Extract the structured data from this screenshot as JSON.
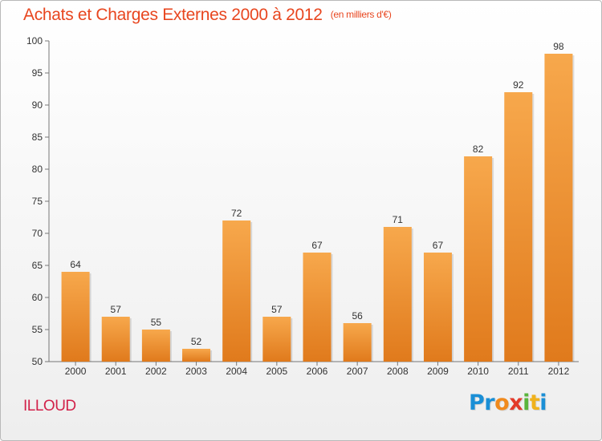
{
  "chart_data": {
    "type": "bar",
    "title": "Achats et Charges Externes 2000 à 2012",
    "subtitle": "(en milliers d'€)",
    "categories": [
      "2000",
      "2001",
      "2002",
      "2003",
      "2004",
      "2005",
      "2006",
      "2007",
      "2008",
      "2009",
      "2010",
      "2011",
      "2012"
    ],
    "values": [
      64,
      57,
      55,
      52,
      72,
      57,
      67,
      56,
      71,
      67,
      82,
      92,
      98
    ],
    "ylim": [
      50,
      100
    ],
    "yticks": [
      50,
      55,
      60,
      65,
      70,
      75,
      80,
      85,
      90,
      95,
      100
    ],
    "grid": false,
    "bar_color": "#f0912f",
    "xlabel": "",
    "ylabel": ""
  },
  "town": "ILLOUD",
  "logo": {
    "letters": [
      {
        "ch": "P",
        "color": "#1a8fd6"
      },
      {
        "ch": "r",
        "color": "#1a8fd6"
      },
      {
        "ch": "o",
        "color": "#f08a1d"
      },
      {
        "ch": "x",
        "color": "#e33a2a"
      },
      {
        "ch": "i",
        "color": "#5ab53c"
      },
      {
        "ch": "t",
        "color": "#f0b21d"
      },
      {
        "ch": "i",
        "color": "#1a8fd6"
      }
    ]
  }
}
